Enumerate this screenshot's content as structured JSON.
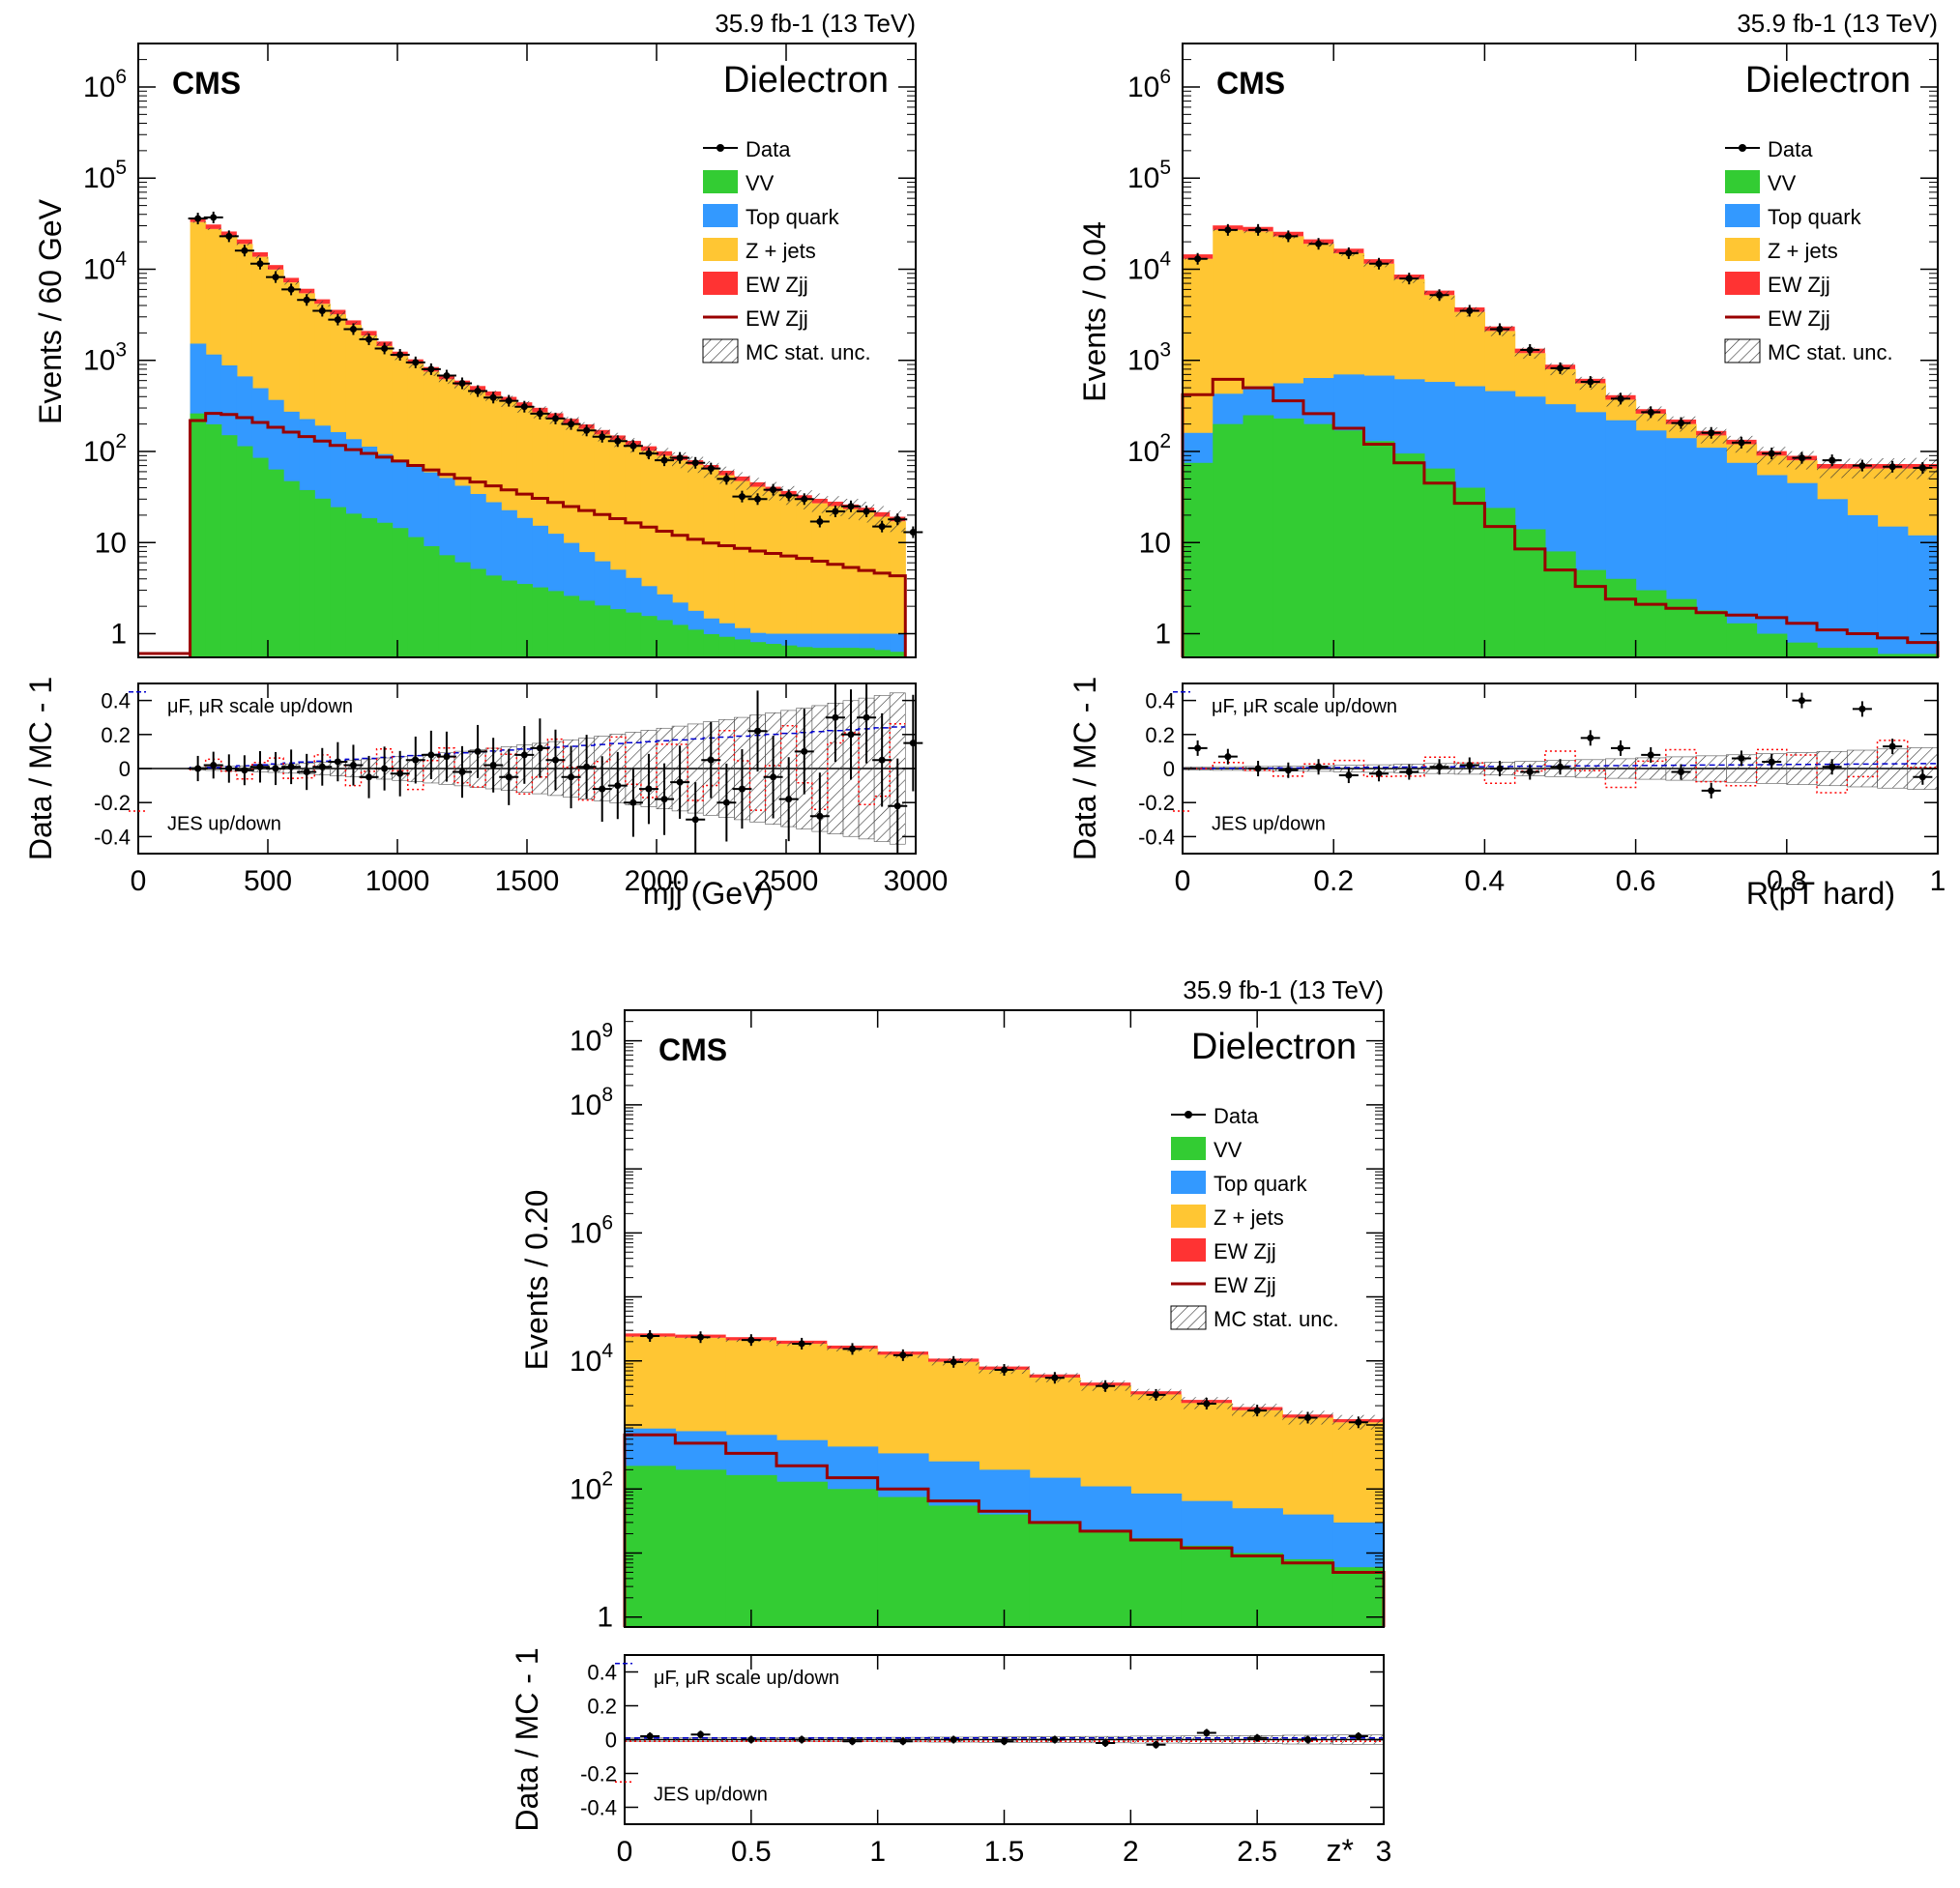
{
  "colors": {
    "data": "#000000",
    "vv": "#33cc33",
    "top": "#3399ff",
    "zjets": "#ffc633",
    "ewfill": "#ff3333",
    "ewline": "#990000",
    "scale": "#0000cc",
    "jes": "#ff0000",
    "frame": "#000000"
  },
  "legend": {
    "data": "Data",
    "vv": "VV",
    "top": "Top quark",
    "zjets": "Z + jets",
    "ew_fill": "EW Zjj",
    "ew_line": "EW Zjj",
    "mcstat": "MC stat. unc."
  },
  "ratio_legend": {
    "scale": "μF, μR scale up/down",
    "jes": "JES up/down"
  },
  "chart_data": [
    {
      "id": "mjj",
      "type": "bar",
      "cms_label": "CMS",
      "channel": "Dielectron",
      "lumi": "35.9 fb-1 (13 TeV)",
      "xlabel": "mjj (GeV)",
      "ylabel": "Events / 60 GeV",
      "ratio_ylabel": "Data / MC - 1",
      "xlim": [
        0,
        3000
      ],
      "ylim": [
        0.55,
        3000000
      ],
      "y_log": true,
      "x_ticks": [
        "0",
        "500",
        "1000",
        "1500",
        "2000",
        "2500",
        "3000"
      ],
      "y_ticks": [
        "1",
        "10",
        "10^2",
        "10^3",
        "10^4",
        "10^5",
        "10^6"
      ],
      "ratio_ticks": [
        "0.4",
        "0.2",
        "0",
        "-0.2",
        "-0.4"
      ],
      "bin_edges": [
        0,
        200,
        3000
      ],
      "zjets_total": [
        [
          200,
          36000
        ],
        [
          400,
          20000
        ],
        [
          600,
          6800
        ],
        [
          800,
          2800
        ],
        [
          1000,
          1150
        ],
        [
          1200,
          600
        ],
        [
          1400,
          380
        ],
        [
          1600,
          240
        ],
        [
          1800,
          150
        ],
        [
          2000,
          95
        ],
        [
          2200,
          65
        ],
        [
          2400,
          40
        ],
        [
          2600,
          28
        ],
        [
          2800,
          22
        ],
        [
          3000,
          15
        ]
      ],
      "top_total": [
        [
          200,
          1750
        ],
        [
          400,
          700
        ],
        [
          600,
          260
        ],
        [
          800,
          150
        ],
        [
          1000,
          80
        ],
        [
          1200,
          50
        ],
        [
          1400,
          25
        ],
        [
          1600,
          13
        ],
        [
          1800,
          6
        ],
        [
          2000,
          3
        ],
        [
          2200,
          1.5
        ],
        [
          2400,
          1
        ],
        [
          2600,
          1
        ],
        [
          2800,
          1
        ],
        [
          3000,
          1
        ]
      ],
      "vv": [
        [
          200,
          300
        ],
        [
          400,
          120
        ],
        [
          600,
          45
        ],
        [
          800,
          22
        ],
        [
          1000,
          15
        ],
        [
          1200,
          7
        ],
        [
          1400,
          4
        ],
        [
          1600,
          3
        ],
        [
          1800,
          2
        ],
        [
          2000,
          1.5
        ],
        [
          2200,
          1
        ],
        [
          2400,
          0.8
        ],
        [
          2600,
          0.7
        ],
        [
          2800,
          0.7
        ],
        [
          3000,
          0.6
        ]
      ],
      "ew_line": [
        [
          200,
          200
        ],
        [
          300,
          270
        ],
        [
          400,
          240
        ],
        [
          600,
          160
        ],
        [
          800,
          110
        ],
        [
          1000,
          80
        ],
        [
          1200,
          55
        ],
        [
          1400,
          40
        ],
        [
          1600,
          28
        ],
        [
          1800,
          20
        ],
        [
          2000,
          14
        ],
        [
          2200,
          10
        ],
        [
          2400,
          8
        ],
        [
          2600,
          6.5
        ],
        [
          2800,
          5
        ],
        [
          3000,
          4
        ]
      ],
      "data_points": [
        [
          230,
          36000
        ],
        [
          290,
          37000
        ],
        [
          350,
          23000
        ],
        [
          410,
          16000
        ],
        [
          470,
          11500
        ],
        [
          530,
          8200
        ],
        [
          590,
          6000
        ],
        [
          650,
          4600
        ],
        [
          710,
          3500
        ],
        [
          770,
          2800
        ],
        [
          830,
          2200
        ],
        [
          890,
          1700
        ],
        [
          950,
          1350
        ],
        [
          1010,
          1150
        ],
        [
          1070,
          950
        ],
        [
          1130,
          800
        ],
        [
          1190,
          680
        ],
        [
          1250,
          560
        ],
        [
          1310,
          460
        ],
        [
          1370,
          390
        ],
        [
          1430,
          360
        ],
        [
          1490,
          310
        ],
        [
          1550,
          260
        ],
        [
          1610,
          230
        ],
        [
          1670,
          200
        ],
        [
          1730,
          170
        ],
        [
          1790,
          145
        ],
        [
          1850,
          130
        ],
        [
          1910,
          115
        ],
        [
          1970,
          95
        ],
        [
          2030,
          80
        ],
        [
          2090,
          85
        ],
        [
          2150,
          75
        ],
        [
          2210,
          65
        ],
        [
          2270,
          50
        ],
        [
          2330,
          32
        ],
        [
          2390,
          30
        ],
        [
          2450,
          38
        ],
        [
          2510,
          33
        ],
        [
          2570,
          30
        ],
        [
          2630,
          17
        ],
        [
          2690,
          22
        ],
        [
          2750,
          25
        ],
        [
          2810,
          22
        ],
        [
          2870,
          15
        ],
        [
          2930,
          18
        ],
        [
          2990,
          13
        ]
      ],
      "ratio_points": [
        [
          230,
          0.0
        ],
        [
          290,
          0.02
        ],
        [
          350,
          0.0
        ],
        [
          410,
          -0.01
        ],
        [
          470,
          0.01
        ],
        [
          530,
          0.0
        ],
        [
          590,
          0.01
        ],
        [
          650,
          -0.02
        ],
        [
          710,
          0.01
        ],
        [
          770,
          0.04
        ],
        [
          830,
          0.02
        ],
        [
          890,
          -0.05
        ],
        [
          950,
          0.0
        ],
        [
          1010,
          -0.03
        ],
        [
          1070,
          0.05
        ],
        [
          1130,
          0.08
        ],
        [
          1190,
          0.07
        ],
        [
          1250,
          -0.02
        ],
        [
          1310,
          0.1
        ],
        [
          1370,
          0.02
        ],
        [
          1430,
          -0.05
        ],
        [
          1490,
          0.08
        ],
        [
          1550,
          0.12
        ],
        [
          1610,
          0.05
        ],
        [
          1670,
          -0.05
        ],
        [
          1730,
          0.01
        ],
        [
          1790,
          -0.12
        ],
        [
          1850,
          -0.1
        ],
        [
          1910,
          -0.2
        ],
        [
          1970,
          -0.12
        ],
        [
          2030,
          -0.18
        ],
        [
          2090,
          -0.08
        ],
        [
          2150,
          -0.3
        ],
        [
          2210,
          0.05
        ],
        [
          2270,
          -0.2
        ],
        [
          2330,
          -0.12
        ],
        [
          2390,
          0.22
        ],
        [
          2450,
          -0.05
        ],
        [
          2510,
          -0.18
        ],
        [
          2570,
          0.1
        ],
        [
          2630,
          -0.28
        ],
        [
          2690,
          0.3
        ],
        [
          2750,
          0.2
        ],
        [
          2810,
          0.3
        ],
        [
          2870,
          0.05
        ],
        [
          2930,
          -0.22
        ],
        [
          2990,
          0.15
        ]
      ]
    },
    {
      "id": "rpt",
      "type": "bar",
      "cms_label": "CMS",
      "channel": "Dielectron",
      "lumi": "35.9 fb-1 (13 TeV)",
      "xlabel": "R(pT hard)",
      "ylabel": "Events / 0.04",
      "ratio_ylabel": "Data / MC - 1",
      "xlim": [
        0,
        1
      ],
      "ylim": [
        0.55,
        3000000
      ],
      "y_log": true,
      "x_ticks": [
        "0",
        "0.2",
        "0.4",
        "0.6",
        "0.8",
        "1"
      ],
      "y_ticks": [
        "1",
        "10",
        "10^2",
        "10^3",
        "10^4",
        "10^5",
        "10^6"
      ],
      "ratio_ticks": [
        "0.4",
        "0.2",
        "0",
        "-0.2",
        "-0.4"
      ],
      "bin_width": 0.04,
      "zjets_total": [
        13000,
        27000,
        26000,
        23000,
        19000,
        15000,
        11500,
        7800,
        5200,
        3400,
        2100,
        1200,
        800,
        560,
        370,
        260,
        200,
        150,
        120,
        90,
        80,
        65,
        65,
        65,
        65
      ],
      "top_total": [
        160,
        430,
        520,
        560,
        640,
        700,
        680,
        620,
        580,
        520,
        460,
        400,
        330,
        270,
        220,
        170,
        140,
        110,
        75,
        55,
        45,
        30,
        20,
        15,
        12
      ],
      "vv": [
        75,
        200,
        250,
        230,
        200,
        170,
        130,
        95,
        65,
        40,
        24,
        14,
        8,
        5,
        4,
        3,
        2.4,
        1.8,
        1.3,
        1.0,
        0.8,
        0.7,
        0.7,
        0.6,
        0.6
      ],
      "ew_line": [
        420,
        620,
        500,
        360,
        260,
        180,
        120,
        75,
        45,
        27,
        15,
        8.5,
        5,
        3.3,
        2.4,
        2.1,
        1.9,
        1.7,
        1.6,
        1.5,
        1.3,
        1.1,
        1.0,
        0.9,
        0.8
      ],
      "data_points": [
        13000,
        27000,
        27000,
        23000,
        19000,
        15000,
        11500,
        7900,
        5200,
        3500,
        2200,
        1300,
        820,
        580,
        380,
        270,
        205,
        160,
        125,
        95,
        85,
        80,
        70,
        68,
        66
      ],
      "ratio_points": [
        0.12,
        0.07,
        0.0,
        -0.01,
        0.01,
        -0.04,
        -0.03,
        -0.02,
        0.01,
        0.02,
        0.0,
        -0.02,
        0.01,
        0.18,
        0.12,
        0.08,
        -0.02,
        -0.13,
        0.06,
        0.04,
        0.4,
        0.01,
        0.35,
        0.13,
        -0.05
      ]
    },
    {
      "id": "zstar",
      "type": "bar",
      "cms_label": "CMS",
      "channel": "Dielectron",
      "lumi": "35.9 fb-1 (13 TeV)",
      "xlabel": "z*",
      "ylabel": "Events / 0.20",
      "ratio_ylabel": "Data / MC - 1",
      "xlim": [
        0,
        3
      ],
      "ylim": [
        0.7,
        3000000000
      ],
      "y_log": true,
      "x_ticks": [
        "0",
        "0.5",
        "1",
        "1.5",
        "2",
        "2.5",
        "3"
      ],
      "y_ticks": [
        "1",
        "10^2",
        "10^4",
        "10^6",
        "10^8",
        "10^9"
      ],
      "ratio_ticks": [
        "0.4",
        "0.2",
        "0",
        "-0.2",
        "-0.4"
      ],
      "bin_width": 0.2,
      "zjets_total": [
        24000,
        23000,
        21000,
        18500,
        15500,
        12500,
        9700,
        7300,
        5500,
        4100,
        3000,
        2200,
        1700,
        1300,
        1100
      ],
      "top_total": [
        880,
        800,
        700,
        580,
        460,
        360,
        270,
        200,
        150,
        110,
        85,
        65,
        50,
        40,
        30
      ],
      "vv": [
        230,
        200,
        165,
        130,
        100,
        75,
        55,
        40,
        30,
        22,
        17,
        13,
        10,
        8,
        6
      ],
      "ew_line": [
        700,
        520,
        360,
        230,
        150,
        100,
        65,
        45,
        30,
        22,
        16,
        12,
        9,
        7,
        5
      ],
      "data_points": [
        24500,
        23500,
        21200,
        18600,
        15400,
        12300,
        9650,
        7250,
        5450,
        4050,
        2950,
        2150,
        1680,
        1300,
        1100
      ],
      "ratio_points": [
        0.02,
        0.03,
        0.0,
        0.0,
        -0.01,
        -0.01,
        0.0,
        -0.01,
        0.0,
        -0.02,
        -0.03,
        0.04,
        0.01,
        0.0,
        0.02
      ]
    }
  ]
}
